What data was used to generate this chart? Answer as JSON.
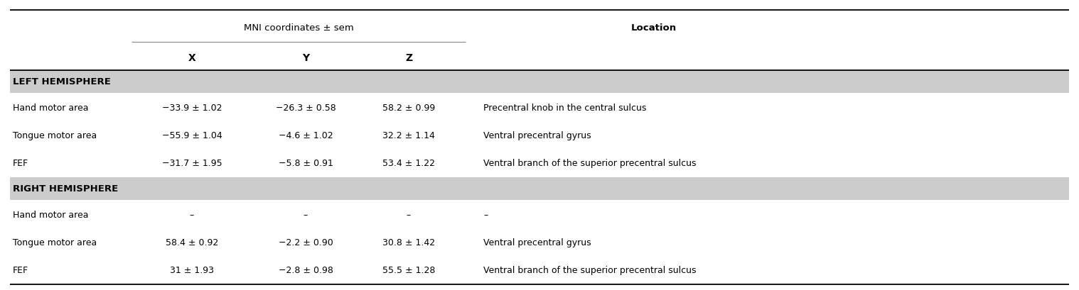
{
  "title_mni": "MNI coordinates ± sem",
  "title_location": "Location",
  "section_bg": "#cccccc",
  "white_bg": "#ffffff",
  "rows": [
    {
      "type": "section",
      "label": "LEFT HEMISPHERE"
    },
    {
      "type": "data",
      "label": "Hand motor area",
      "x": "−33.9 ± 1.02",
      "y": "−26.3 ± 0.58",
      "z": "58.2 ± 0.99",
      "location": "Precentral knob in the central sulcus"
    },
    {
      "type": "data",
      "label": "Tongue motor area",
      "x": "−55.9 ± 1.04",
      "y": "−4.6 ± 1.02",
      "z": "32.2 ± 1.14",
      "location": "Ventral precentral gyrus"
    },
    {
      "type": "data",
      "label": "FEF",
      "x": "−31.7 ± 1.95",
      "y": "−5.8 ± 0.91",
      "z": "53.4 ± 1.22",
      "location": "Ventral branch of the superior precentral sulcus"
    },
    {
      "type": "section",
      "label": "RIGHT HEMISPHERE"
    },
    {
      "type": "data",
      "label": "Hand motor area",
      "x": "–",
      "y": "–",
      "z": "–",
      "location": "–"
    },
    {
      "type": "data",
      "label": "Tongue motor area",
      "x": "58.4 ± 0.92",
      "y": "−2.2 ± 0.90",
      "z": "30.8 ± 1.42",
      "location": "Ventral precentral gyrus"
    },
    {
      "type": "data",
      "label": "FEF",
      "x": "31 ± 1.93",
      "y": "−2.8 ± 0.98",
      "z": "55.5 ± 1.28",
      "location": "Ventral branch of the superior precentral sulcus"
    }
  ],
  "font_size_title": 9.5,
  "font_size_header": 10.0,
  "font_size_data": 9.0,
  "font_size_section": 9.5
}
